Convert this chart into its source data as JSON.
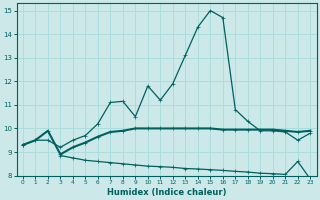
{
  "xlabel": "Humidex (Indice chaleur)",
  "bg_color": "#cce8e8",
  "grid_color": "#b0d8d8",
  "line_color": "#006060",
  "xlim": [
    -0.5,
    23.5
  ],
  "ylim": [
    8,
    15.3
  ],
  "xticks": [
    0,
    1,
    2,
    3,
    4,
    5,
    6,
    7,
    8,
    9,
    10,
    11,
    12,
    13,
    14,
    15,
    16,
    17,
    18,
    19,
    20,
    21,
    22,
    23
  ],
  "yticks": [
    8,
    9,
    10,
    11,
    12,
    13,
    14,
    15
  ],
  "line1_x": [
    0,
    1,
    2,
    3,
    4,
    5,
    6,
    7,
    8,
    9,
    10,
    11,
    12,
    13,
    14,
    15,
    16,
    17,
    18,
    19,
    20,
    21,
    22,
    23
  ],
  "line1_y": [
    9.3,
    9.5,
    9.5,
    9.2,
    9.5,
    9.7,
    10.2,
    11.1,
    11.15,
    10.5,
    11.8,
    11.2,
    11.9,
    13.1,
    14.3,
    15.0,
    14.7,
    10.8,
    10.3,
    9.9,
    9.9,
    9.85,
    9.5,
    9.8
  ],
  "line2_x": [
    0,
    1,
    2,
    3,
    4,
    5,
    6,
    7,
    8,
    9,
    10,
    11,
    12,
    13,
    14,
    15,
    16,
    17,
    18,
    19,
    20,
    21,
    22,
    23
  ],
  "line2_y": [
    9.3,
    9.5,
    9.9,
    8.9,
    9.2,
    9.4,
    9.65,
    9.85,
    9.9,
    10.0,
    10.0,
    10.0,
    10.0,
    10.0,
    10.0,
    10.0,
    9.95,
    9.95,
    9.95,
    9.95,
    9.95,
    9.9,
    9.85,
    9.9
  ],
  "line3_x": [
    3,
    4,
    5,
    6,
    7,
    8,
    9,
    10,
    11,
    12,
    13,
    14,
    15,
    16,
    17,
    18,
    19,
    20,
    21,
    22,
    23
  ],
  "line3_y": [
    8.85,
    8.75,
    8.65,
    8.6,
    8.55,
    8.5,
    8.45,
    8.4,
    8.38,
    8.35,
    8.3,
    8.28,
    8.25,
    8.22,
    8.18,
    8.15,
    8.1,
    8.08,
    8.05,
    8.6,
    7.85
  ]
}
